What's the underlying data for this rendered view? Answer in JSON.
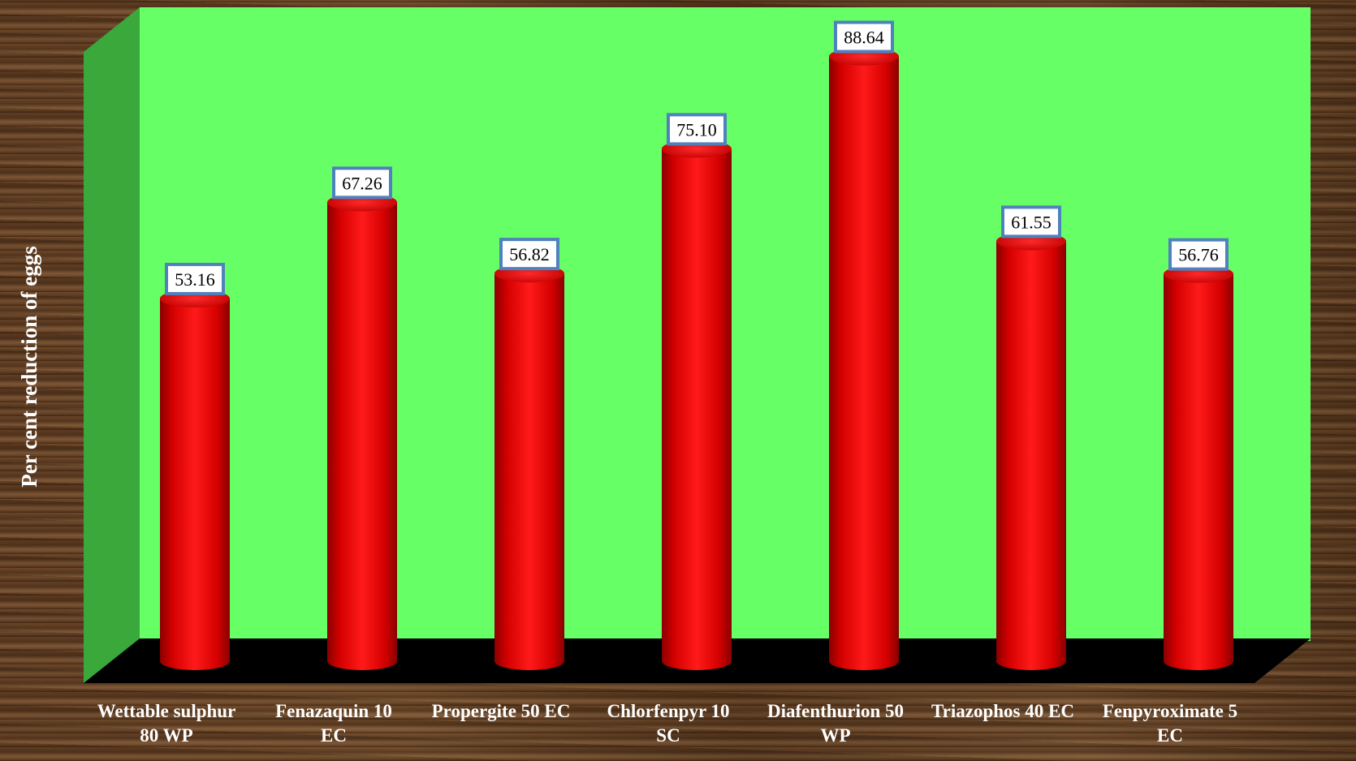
{
  "chart_data": {
    "type": "bar",
    "title": "",
    "ylabel": "Per cent reduction of eggs",
    "xlabel": "",
    "ylim": [
      0,
      100
    ],
    "grid": false,
    "legend": "none",
    "categories": [
      [
        "Wettable sulphur",
        "80 WP"
      ],
      [
        "Fenazaquin 10",
        "EC"
      ],
      [
        "Propergite 50 EC"
      ],
      [
        "Chlorfenpyr 10",
        "SC"
      ],
      [
        "Diafenthurion 50",
        "WP"
      ],
      [
        "Triazophos 40 EC"
      ],
      [
        "Fenpyroximate 5",
        "EC"
      ]
    ],
    "values": [
      53.16,
      67.26,
      56.82,
      75.1,
      88.64,
      61.55,
      56.76
    ],
    "value_labels": [
      "53.16",
      "67.26",
      "56.82",
      "75.10",
      "88.64",
      "61.55",
      "56.76"
    ],
    "colors": {
      "bar": "#ff0000",
      "back_wall": "#66ff66",
      "side_wall": "#3aa83a",
      "floor": "#000000",
      "label_border": "#4f81bd",
      "label_fill": "#ffffff",
      "text": "#ffffff"
    }
  }
}
